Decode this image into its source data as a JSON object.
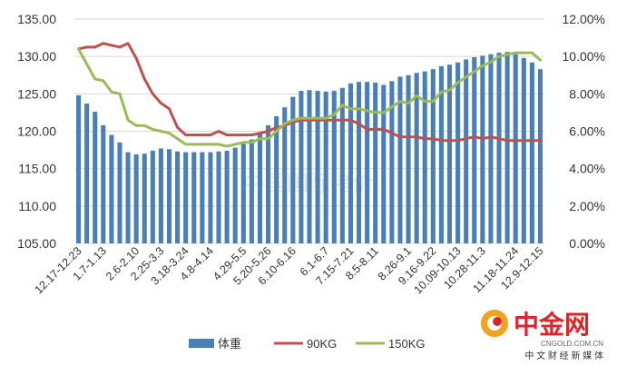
{
  "chart_data": {
    "type": "bar",
    "left_axis": {
      "min": 105,
      "max": 135,
      "step": 5,
      "tick_labels": [
        "105.00",
        "110.00",
        "115.00",
        "120.00",
        "125.00",
        "130.00",
        "135.00"
      ]
    },
    "right_axis": {
      "min": 0,
      "max": 12,
      "step": 2,
      "tick_labels": [
        "0.00%",
        "2.00%",
        "4.00%",
        "6.00%",
        "8.00%",
        "10.00%",
        "12.00%"
      ]
    },
    "grid": true,
    "legend_position": "bottom",
    "x_tick_labels": [
      "12.17-12.23",
      "1.7-1.13",
      "2.6-2.10",
      "2.25-3.3",
      "3.18-3.24",
      "4.8-4.14",
      "4.29-5.5",
      "5.20-5.26",
      "6.10-6.16",
      "6.1-6.7",
      "7.15-7.21",
      "8.5-8.11",
      "8.26-9.1",
      "9.16-9.22",
      "10.09-10.13",
      "10.28-11.3",
      "11.18-11.24",
      "12.9-12.15"
    ],
    "series": [
      {
        "name": "体重",
        "type": "bar",
        "axis": "left",
        "color": "#4a7fb5",
        "values": [
          124.8,
          123.7,
          122.6,
          120.8,
          119.5,
          118.5,
          117.2,
          116.9,
          117.0,
          117.4,
          117.7,
          117.6,
          117.3,
          117.2,
          117.2,
          117.2,
          117.2,
          117.3,
          117.4,
          117.8,
          118.3,
          118.9,
          119.7,
          120.8,
          122.0,
          123.2,
          124.6,
          125.4,
          125.5,
          125.4,
          125.3,
          125.4,
          125.8,
          126.4,
          126.6,
          126.6,
          126.5,
          126.2,
          126.7,
          127.3,
          127.5,
          127.8,
          128.0,
          128.3,
          128.7,
          128.9,
          129.2,
          129.6,
          129.9,
          130.1,
          130.3,
          130.5,
          130.6,
          130.3,
          129.8,
          129.2,
          128.3
        ]
      },
      {
        "name": "90KG",
        "type": "line",
        "axis": "right",
        "color": "#c0504d",
        "values": [
          10.4,
          10.5,
          10.5,
          10.7,
          10.6,
          10.5,
          10.7,
          9.9,
          8.8,
          8.0,
          7.5,
          7.2,
          6.2,
          5.8,
          5.8,
          5.8,
          5.8,
          6.0,
          5.8,
          5.8,
          5.8,
          5.8,
          5.9,
          6.0,
          6.2,
          6.3,
          6.5,
          6.6,
          6.6,
          6.6,
          6.6,
          6.6,
          6.6,
          6.6,
          6.4,
          6.1,
          6.1,
          6.1,
          5.9,
          5.7,
          5.7,
          5.7,
          5.6,
          5.6,
          5.5,
          5.5,
          5.5,
          5.6,
          5.7,
          5.6,
          5.7,
          5.6,
          5.5,
          5.5,
          5.5,
          5.5,
          5.5
        ]
      },
      {
        "name": "150KG",
        "type": "line",
        "axis": "right",
        "color": "#9bbb59",
        "values": [
          10.4,
          9.6,
          8.8,
          8.7,
          8.1,
          8.0,
          6.6,
          6.3,
          6.3,
          6.1,
          6.0,
          5.9,
          5.6,
          5.3,
          5.3,
          5.3,
          5.3,
          5.3,
          5.2,
          5.3,
          5.4,
          5.4,
          5.6,
          5.6,
          6.0,
          6.4,
          6.6,
          6.7,
          6.7,
          6.7,
          6.7,
          6.9,
          7.4,
          7.2,
          7.2,
          7.1,
          7.0,
          7.0,
          7.3,
          7.6,
          7.5,
          7.9,
          7.6,
          7.6,
          8.1,
          8.2,
          8.6,
          8.9,
          9.2,
          9.5,
          9.7,
          10.0,
          10.1,
          10.2,
          10.2,
          10.2,
          9.8
        ]
      }
    ]
  },
  "legend": [
    {
      "label": "体重",
      "color": "#4a7fb5"
    },
    {
      "label": "90KG",
      "color": "#c0504d"
    },
    {
      "label": "150KG",
      "color": "#9bbb59"
    }
  ],
  "watermark": {
    "text": "中国国际猪价"
  },
  "logo": {
    "main": "中金网",
    "domain": "CNGOLD.COM.CN",
    "tagline": "中 文 财 经 新 媒 体",
    "color": "#d9262b"
  }
}
